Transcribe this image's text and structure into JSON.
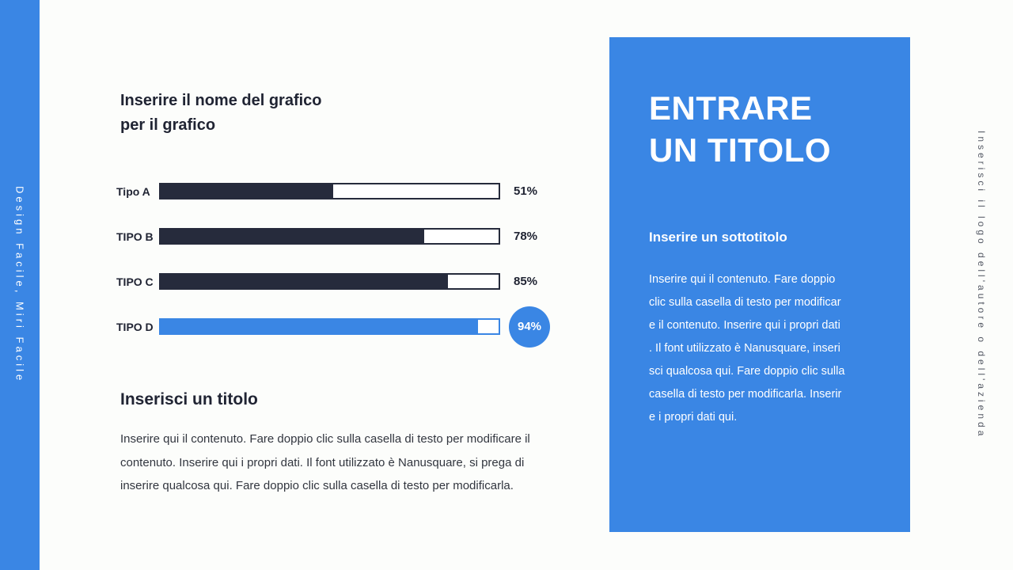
{
  "rails": {
    "left_text": "Design Facile, Miri Facile",
    "right_text": "Inserisci il logo dell'autore o dell'azienda"
  },
  "colors": {
    "accent_blue": "#3a86e4",
    "dark_navy": "#262b3c",
    "heading_text": "#202433",
    "body_text": "#32363f",
    "rail_caption_gray": "#565b66",
    "background": "#fcfdfb"
  },
  "chart_block": {
    "title": "Inserire il nome del grafico\nper il grafico"
  },
  "chart_data": {
    "type": "bar",
    "orientation": "horizontal",
    "title": "Inserire il nome del grafico per il grafico",
    "categories": [
      "Tipo A",
      "TIPO B",
      "TIPO C",
      "TIPO D"
    ],
    "values": [
      51,
      78,
      85,
      94
    ],
    "value_labels": [
      "51%",
      "78%",
      "85%",
      "94%"
    ],
    "xlim": [
      0,
      100
    ],
    "bar_colors": [
      "#262b3c",
      "#262b3c",
      "#262b3c",
      "#3a86e4"
    ],
    "highlight_index": 3,
    "grid": false,
    "legend": false
  },
  "section": {
    "heading": "Inserisci un titolo",
    "paragraph": "Inserire qui il contenuto. Fare doppio clic sulla casella di testo per modificare il\ncontenuto. Inserire qui i propri dati. Il font utilizzato è Nanusquare, si prega di\ninserire qualcosa qui. Fare doppio clic sulla casella di testo per modificarla."
  },
  "panel": {
    "title": "ENTRARE\nUN TITOLO",
    "subtitle": "Inserire un sottotitolo",
    "paragraph": "Inserire qui il contenuto. Fare doppio\nclic sulla casella di testo per modificar\ne il contenuto. Inserire qui i propri dati\n. Il font utilizzato è Nanusquare, inseri\nsci qualcosa qui. Fare doppio clic sulla\ncasella di testo per modificarla. Inserir\ne i propri dati qui."
  }
}
